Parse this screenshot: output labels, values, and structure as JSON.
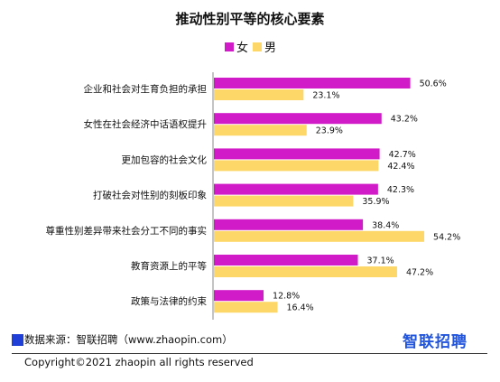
{
  "colors": {
    "female": "#d21bc8",
    "male": "#fdd868",
    "axis": "#888888",
    "brand": "#2255dd",
    "source_square": "#1f3fd6"
  },
  "chart_data": {
    "type": "bar",
    "orientation": "horizontal",
    "title": "推动性别平等的核心要素",
    "categories": [
      "企业和社会对生育负担的承担",
      "女性在社会经济中话语权提升",
      "更加包容的社会文化",
      "打破社会对性别的刻板印象",
      "尊重性别差异带来社会分工不同的事实",
      "教育资源上的平等",
      "政策与法律的约束"
    ],
    "series": [
      {
        "name": "女",
        "values": [
          50.6,
          43.2,
          42.7,
          42.3,
          38.4,
          37.1,
          12.8
        ],
        "labels": [
          "50.6%",
          "43.2%",
          "42.7%",
          "42.3%",
          "38.4%",
          "37.1%",
          "12.8%"
        ]
      },
      {
        "name": "男",
        "values": [
          23.1,
          23.9,
          42.4,
          35.9,
          54.2,
          47.2,
          16.4
        ],
        "labels": [
          "23.1%",
          "23.9%",
          "42.4%",
          "35.9%",
          "54.2%",
          "47.2%",
          "16.4%"
        ]
      }
    ],
    "unit": "%",
    "legend": "top-center",
    "grid": false
  },
  "footer": {
    "source": "数据来源：智联招聘（www.zhaopin.com）",
    "copyright": "Copyright©2021 zhaopin all rights reserved",
    "logo": "智联招聘"
  }
}
